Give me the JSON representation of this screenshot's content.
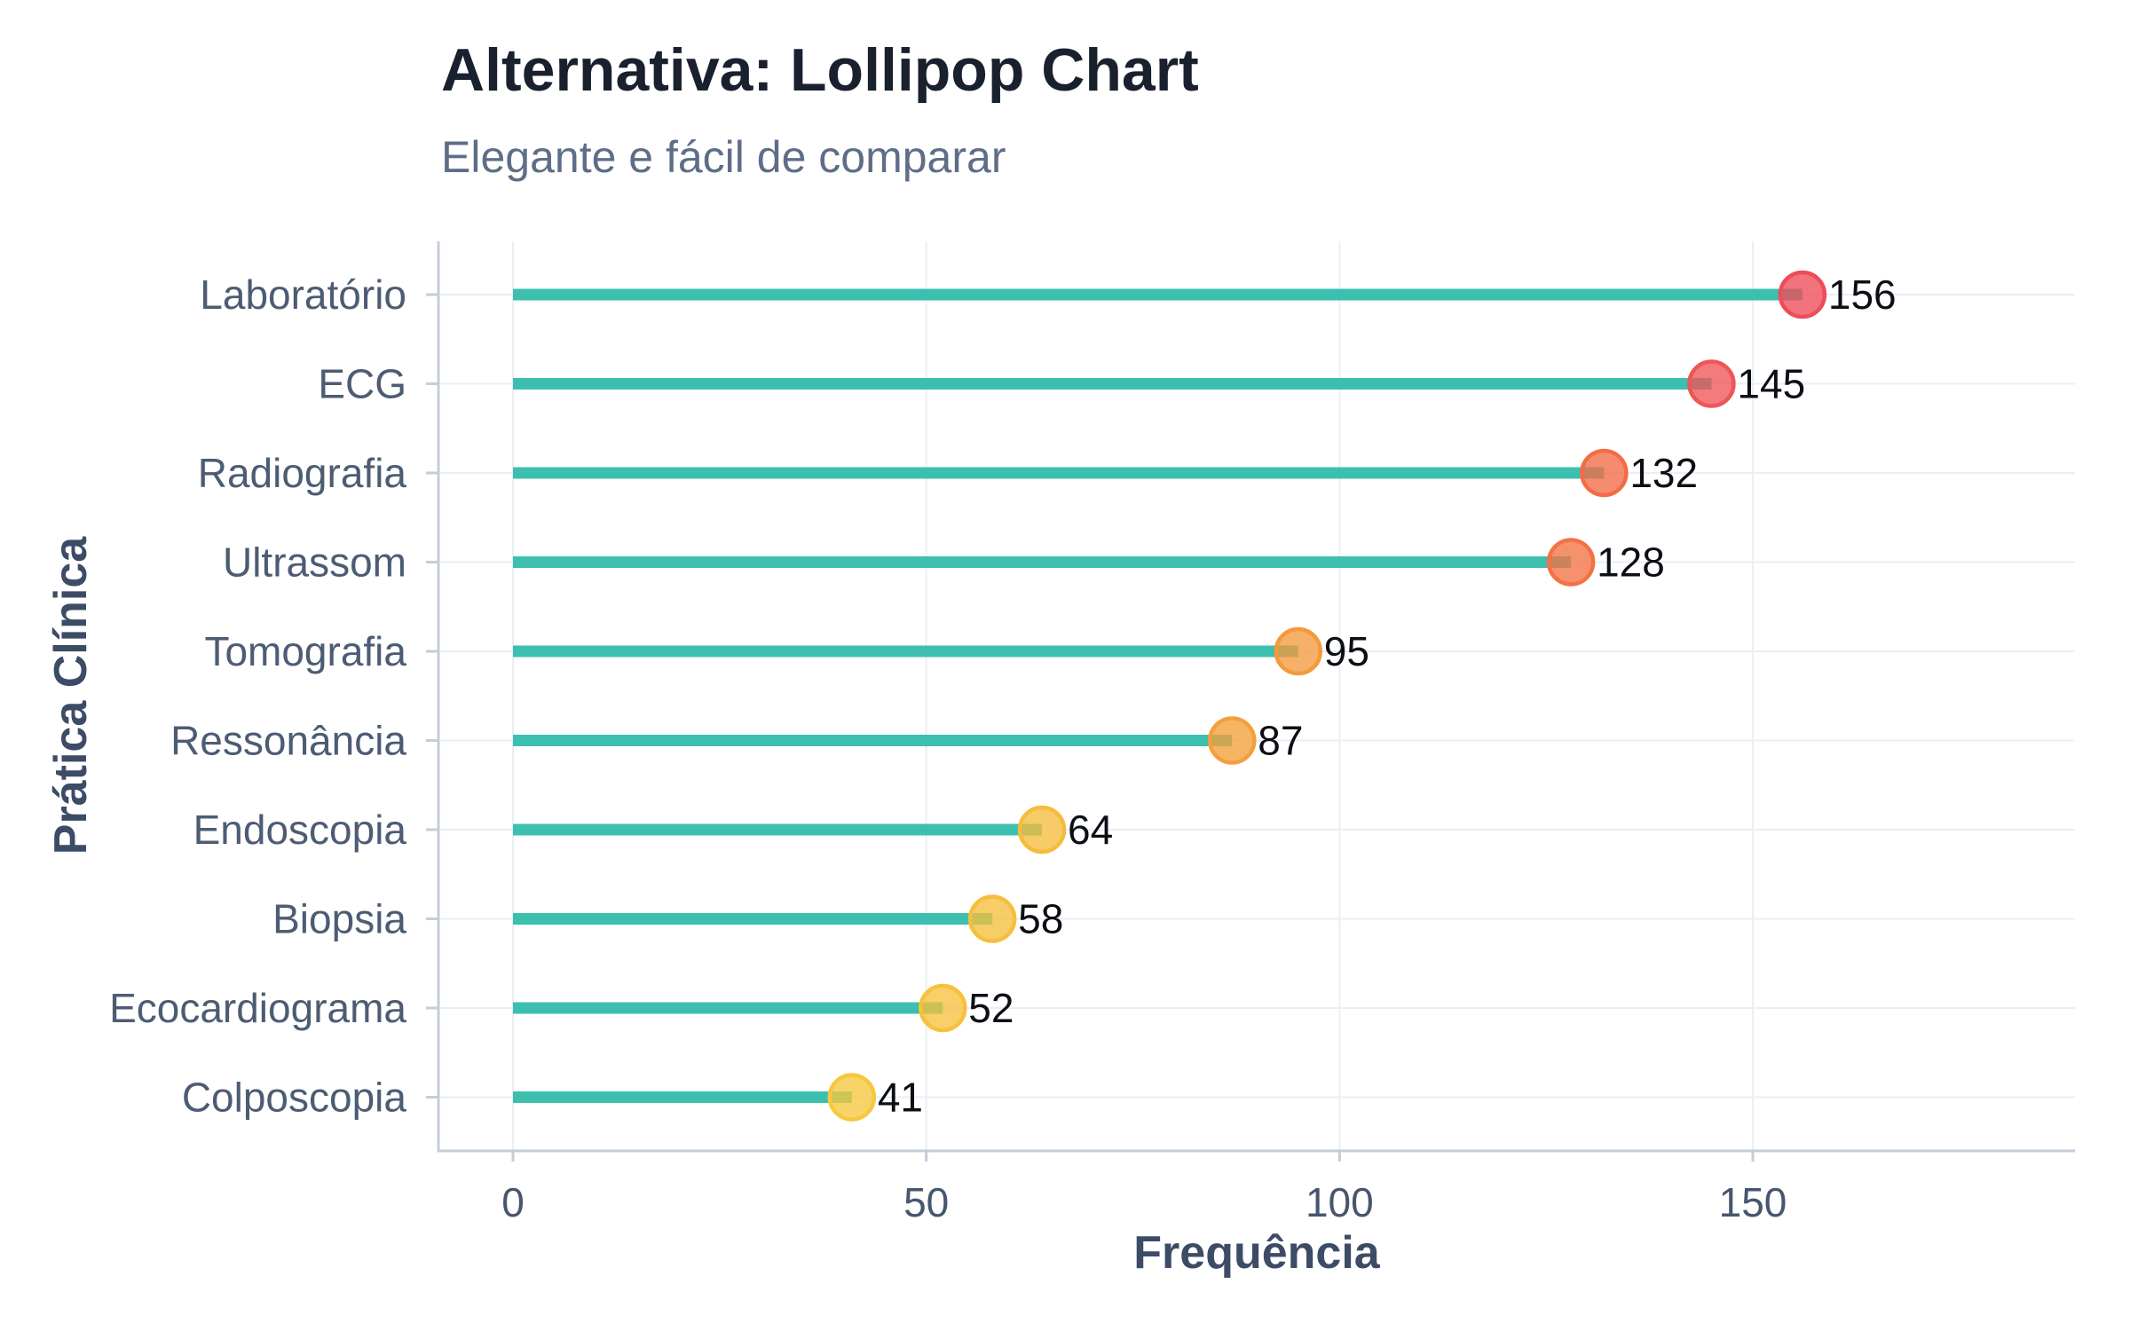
{
  "header": {
    "title": "Alternativa: Lollipop Chart",
    "subtitle": "Elegante e fácil de comparar"
  },
  "chart_data": {
    "type": "bar",
    "variant": "lollipop",
    "orientation": "horizontal",
    "title": "Alternativa: Lollipop Chart",
    "subtitle": "Elegante e fácil de comparar",
    "xlabel": "Frequência",
    "ylabel": "Prática Clínica",
    "categories": [
      "Laboratório",
      "ECG",
      "Radiografia",
      "Ultrassom",
      "Tomografia",
      "Ressonância",
      "Endoscopia",
      "Biopsia",
      "Ecocardiograma",
      "Colposcopia"
    ],
    "values": [
      156,
      145,
      132,
      128,
      95,
      87,
      64,
      58,
      52,
      41
    ],
    "value_labels": [
      "156",
      "145",
      "132",
      "128",
      "95",
      "87",
      "64",
      "58",
      "52",
      "41"
    ],
    "point_colors": [
      "#EE4C59",
      "#EF5458",
      "#F26C46",
      "#F37244",
      "#F39A3C",
      "#F4A03A",
      "#F5BC3D",
      "#F5BF3D",
      "#F6C23E",
      "#F6C83E"
    ],
    "stem_color": "#3CBFAF",
    "x_ticks": [
      0,
      50,
      100,
      150
    ],
    "x_tick_labels": [
      "0",
      "50",
      "100",
      "150"
    ],
    "xlim": [
      0,
      189
    ],
    "grid": true,
    "legend": "none"
  },
  "colors": {
    "background": "#FFFFFF",
    "gridline": "#EAEFF5",
    "axis_line": "#C5CDD9",
    "tick_mark": "#C5CDD9",
    "tick_label": "#47566D",
    "category_label": "#4C5C73",
    "value_label": "#0B0E14",
    "title": "#19202E",
    "subtitle": "#5E6E87",
    "axis_title": "#3D4C66"
  }
}
